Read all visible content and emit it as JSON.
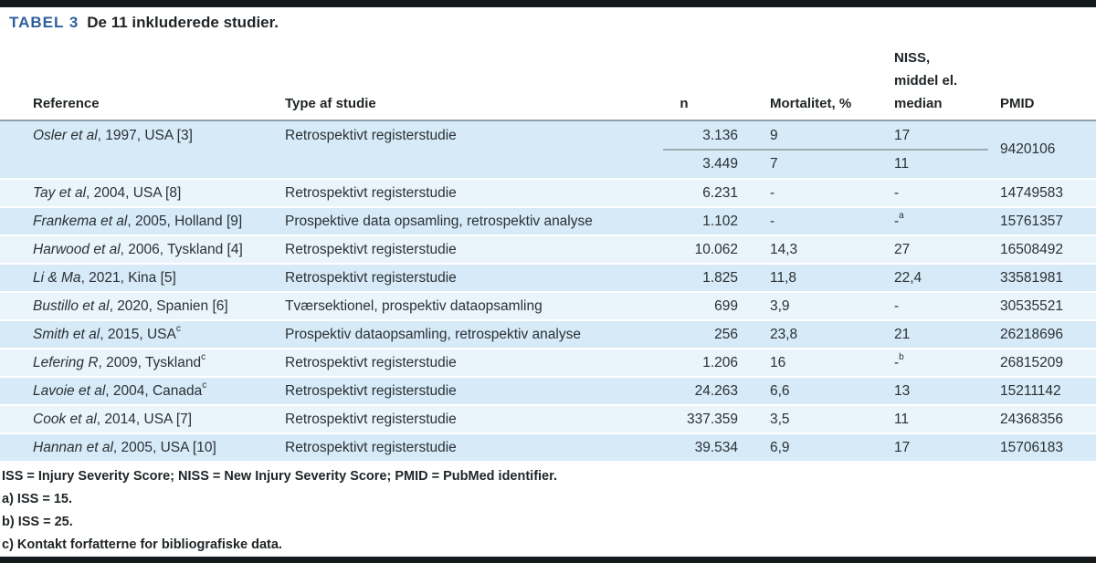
{
  "title": {
    "label": "TABEL 3",
    "text": "De 11 inkluderede studier."
  },
  "columns": {
    "reference": "Reference",
    "type": "Type af studie",
    "n": "n",
    "mortality": "Mortalitet, %",
    "niss_lines": [
      "NISS,",
      "middel el.",
      "median"
    ],
    "pmid": "PMID"
  },
  "rows": [
    {
      "ref_italic": "Osler et al",
      "ref_rest": ", 1997, USA [3]",
      "ref_sup": "",
      "type": "Retrospektivt registerstudie",
      "values": [
        {
          "n": "3.136",
          "mortality": "9",
          "niss": "17",
          "niss_sup": ""
        },
        {
          "n": "3.449",
          "mortality": "7",
          "niss": "11",
          "niss_sup": ""
        }
      ],
      "pmid": "9420106",
      "shade": "dark"
    },
    {
      "ref_italic": "Tay et al",
      "ref_rest": ", 2004, USA [8]",
      "ref_sup": "",
      "type": "Retrospektivt registerstudie",
      "values": [
        {
          "n": "6.231",
          "mortality": "-",
          "niss": "-",
          "niss_sup": ""
        }
      ],
      "pmid": "14749583",
      "shade": "light"
    },
    {
      "ref_italic": "Frankema et al",
      "ref_rest": ", 2005, Holland [9]",
      "ref_sup": "",
      "type": "Prospektive data opsamling, retrospektiv analyse",
      "values": [
        {
          "n": "1.102",
          "mortality": "-",
          "niss": "-",
          "niss_sup": "a"
        }
      ],
      "pmid": "15761357",
      "shade": "dark"
    },
    {
      "ref_italic": "Harwood et al",
      "ref_rest": ", 2006, Tyskland [4]",
      "ref_sup": "",
      "type": "Retrospektivt registerstudie",
      "values": [
        {
          "n": "10.062",
          "mortality": "14,3",
          "niss": "27",
          "niss_sup": ""
        }
      ],
      "pmid": "16508492",
      "shade": "light"
    },
    {
      "ref_italic": "Li & Ma",
      "ref_rest": ", 2021, Kina [5]",
      "ref_sup": "",
      "type": "Retrospektivt registerstudie",
      "values": [
        {
          "n": "1.825",
          "mortality": "11,8",
          "niss": "22,4",
          "niss_sup": ""
        }
      ],
      "pmid": "33581981",
      "shade": "dark"
    },
    {
      "ref_italic": "Bustillo et al",
      "ref_rest": ", 2020, Spanien [6]",
      "ref_sup": "",
      "type": "Tværsektionel, prospektiv dataopsamling",
      "values": [
        {
          "n": "699",
          "mortality": "3,9",
          "niss": "-",
          "niss_sup": ""
        }
      ],
      "pmid": "30535521",
      "shade": "light"
    },
    {
      "ref_italic": "Smith et al",
      "ref_rest": ", 2015, USA",
      "ref_sup": "c",
      "type": "Prospektiv dataopsamling, retrospektiv analyse",
      "values": [
        {
          "n": "256",
          "mortality": "23,8",
          "niss": "21",
          "niss_sup": ""
        }
      ],
      "pmid": "26218696",
      "shade": "dark"
    },
    {
      "ref_italic": "Lefering R",
      "ref_rest": ", 2009, Tyskland",
      "ref_sup": "c",
      "type": "Retrospektivt registerstudie",
      "values": [
        {
          "n": "1.206",
          "mortality": "16",
          "niss": "-",
          "niss_sup": "b"
        }
      ],
      "pmid": "26815209",
      "shade": "light"
    },
    {
      "ref_italic": "Lavoie et al",
      "ref_rest": ", 2004, Canada",
      "ref_sup": "c",
      "type": "Retrospektivt registerstudie",
      "values": [
        {
          "n": "24.263",
          "mortality": "6,6",
          "niss": "13",
          "niss_sup": ""
        }
      ],
      "pmid": "15211142",
      "shade": "dark"
    },
    {
      "ref_italic": "Cook et al",
      "ref_rest": ", 2014, USA [7]",
      "ref_sup": "",
      "type": "Retrospektivt registerstudie",
      "values": [
        {
          "n": "337.359",
          "mortality": "3,5",
          "niss": "11",
          "niss_sup": ""
        }
      ],
      "pmid": "24368356",
      "shade": "light"
    },
    {
      "ref_italic": "Hannan et al",
      "ref_rest": ", 2005, USA [10]",
      "ref_sup": "",
      "type": "Retrospektivt registerstudie",
      "values": [
        {
          "n": "39.534",
          "mortality": "6,9",
          "niss": "17",
          "niss_sup": ""
        }
      ],
      "pmid": "15706183",
      "shade": "dark"
    }
  ],
  "footnotes": [
    "ISS = Injury Severity Score; NISS = New Injury Severity Score; PMID = PubMed identifier.",
    "a) ISS = 15.",
    "b) ISS = 25.",
    "c) Kontakt forfatterne for bibliografiske data."
  ],
  "colors": {
    "accent_blue": "#2d5f9e",
    "row_dark": "#d6eaf7",
    "row_light": "#e9f4fb",
    "border_bar": "#151a1d",
    "header_line": "#8da0a9",
    "text": "#1f2427"
  }
}
